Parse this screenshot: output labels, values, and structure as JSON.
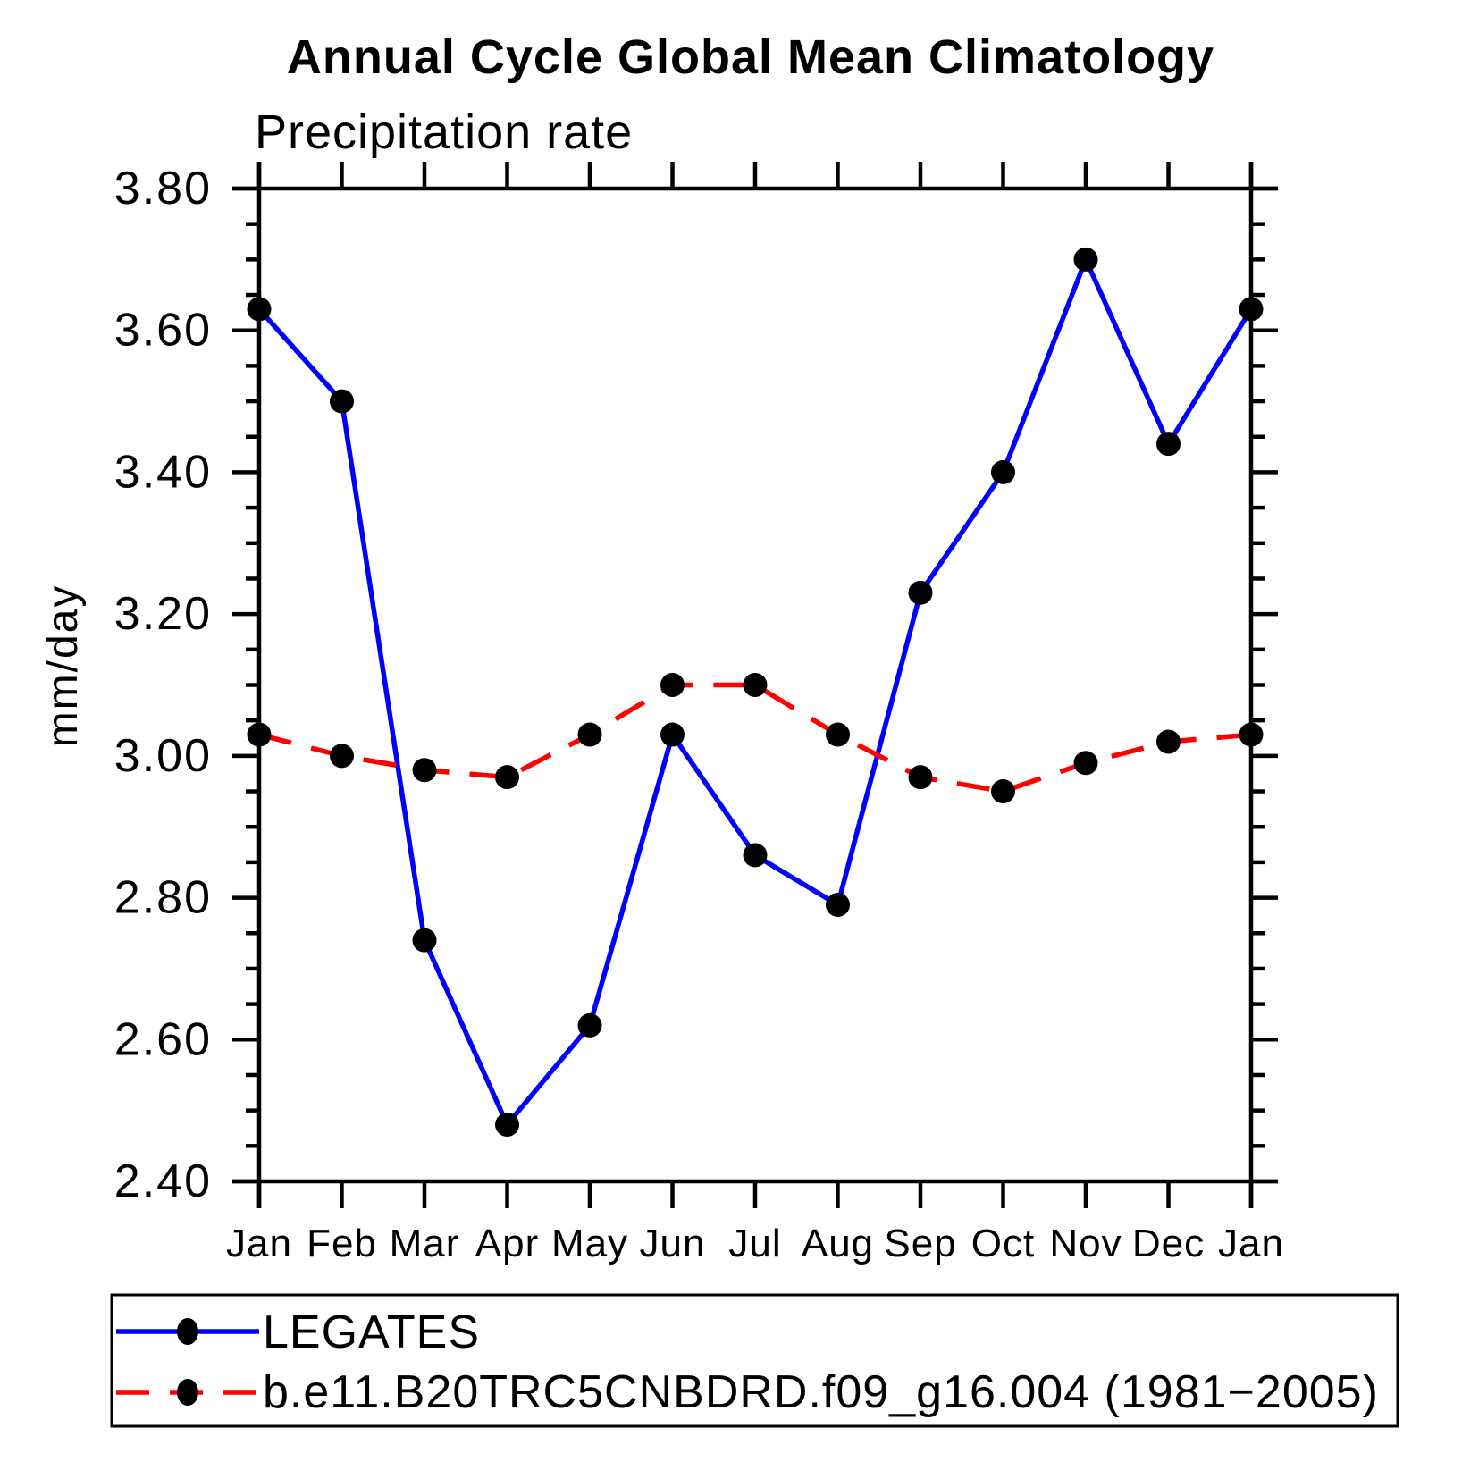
{
  "figure": {
    "background": "#ffffff",
    "frame_color": "#000000"
  },
  "chart_data": {
    "type": "line",
    "title": "Annual Cycle Global Mean Climatology",
    "subtitle": "Precipitation rate",
    "ylabel": "mm/day",
    "xlabel": "",
    "x_categories": [
      "Jan",
      "Feb",
      "Mar",
      "Apr",
      "May",
      "Jun",
      "Jul",
      "Aug",
      "Sep",
      "Oct",
      "Nov",
      "Dec",
      "Jan"
    ],
    "ylim": [
      2.4,
      3.8
    ],
    "ytick_major_step": 0.2,
    "ytick_minor_step": 0.05,
    "ytick_labels": [
      "2.40",
      "2.60",
      "2.80",
      "3.00",
      "3.20",
      "3.40",
      "3.60",
      "3.80"
    ],
    "grid": "off",
    "legend_position": "bottom",
    "series": [
      {
        "name": "LEGATES",
        "color": "#0000ff",
        "line_style": "solid",
        "marker": "filled-circle",
        "marker_color": "#000000",
        "values": [
          3.63,
          3.5,
          2.74,
          2.48,
          2.62,
          3.03,
          2.86,
          2.79,
          3.23,
          3.4,
          3.7,
          3.44,
          3.63
        ]
      },
      {
        "name": "b.e11.B20TRC5CNBDRD.f09_g16.004 (1981−2005)",
        "color": "#ff0000",
        "line_style": "dashed",
        "marker": "filled-circle",
        "marker_color": "#000000",
        "values": [
          3.03,
          3.0,
          2.98,
          2.97,
          3.03,
          3.1,
          3.1,
          3.03,
          2.97,
          2.95,
          2.99,
          3.02,
          3.03
        ]
      }
    ]
  }
}
